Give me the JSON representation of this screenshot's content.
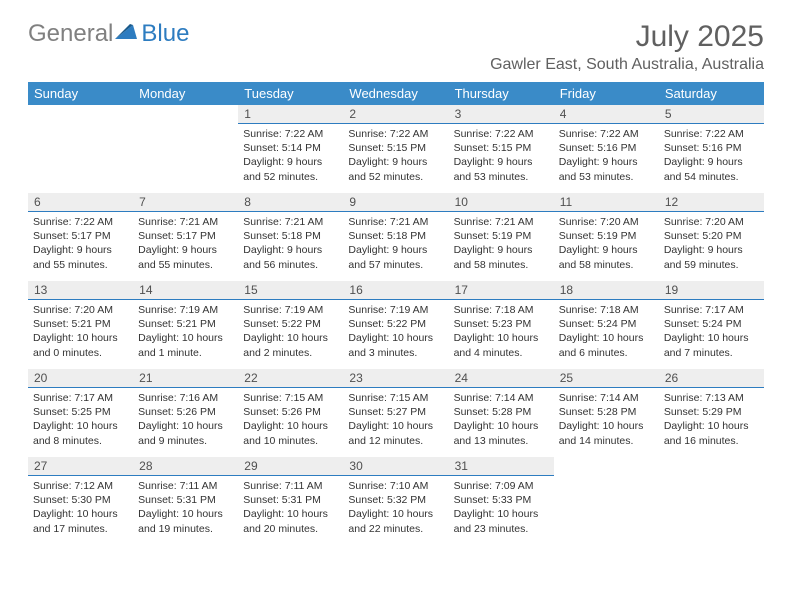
{
  "logo": {
    "part1": "General",
    "part2": "Blue"
  },
  "title": "July 2025",
  "subtitle": "Gawler East, South Australia, Australia",
  "colors": {
    "header_bg": "#3a8bc8",
    "header_text": "#ffffff",
    "daynum_bg": "#eeeeee",
    "daynum_border": "#2d7cc0",
    "logo_gray": "#808080",
    "logo_blue": "#2d7cc0",
    "title_color": "#606060",
    "text_color": "#333333",
    "bg": "#ffffff"
  },
  "dayNames": [
    "Sunday",
    "Monday",
    "Tuesday",
    "Wednesday",
    "Thursday",
    "Friday",
    "Saturday"
  ],
  "weeks": [
    [
      null,
      null,
      {
        "n": "1",
        "sr": "7:22 AM",
        "ss": "5:14 PM",
        "dl": "9 hours and 52 minutes."
      },
      {
        "n": "2",
        "sr": "7:22 AM",
        "ss": "5:15 PM",
        "dl": "9 hours and 52 minutes."
      },
      {
        "n": "3",
        "sr": "7:22 AM",
        "ss": "5:15 PM",
        "dl": "9 hours and 53 minutes."
      },
      {
        "n": "4",
        "sr": "7:22 AM",
        "ss": "5:16 PM",
        "dl": "9 hours and 53 minutes."
      },
      {
        "n": "5",
        "sr": "7:22 AM",
        "ss": "5:16 PM",
        "dl": "9 hours and 54 minutes."
      }
    ],
    [
      {
        "n": "6",
        "sr": "7:22 AM",
        "ss": "5:17 PM",
        "dl": "9 hours and 55 minutes."
      },
      {
        "n": "7",
        "sr": "7:21 AM",
        "ss": "5:17 PM",
        "dl": "9 hours and 55 minutes."
      },
      {
        "n": "8",
        "sr": "7:21 AM",
        "ss": "5:18 PM",
        "dl": "9 hours and 56 minutes."
      },
      {
        "n": "9",
        "sr": "7:21 AM",
        "ss": "5:18 PM",
        "dl": "9 hours and 57 minutes."
      },
      {
        "n": "10",
        "sr": "7:21 AM",
        "ss": "5:19 PM",
        "dl": "9 hours and 58 minutes."
      },
      {
        "n": "11",
        "sr": "7:20 AM",
        "ss": "5:19 PM",
        "dl": "9 hours and 58 minutes."
      },
      {
        "n": "12",
        "sr": "7:20 AM",
        "ss": "5:20 PM",
        "dl": "9 hours and 59 minutes."
      }
    ],
    [
      {
        "n": "13",
        "sr": "7:20 AM",
        "ss": "5:21 PM",
        "dl": "10 hours and 0 minutes."
      },
      {
        "n": "14",
        "sr": "7:19 AM",
        "ss": "5:21 PM",
        "dl": "10 hours and 1 minute."
      },
      {
        "n": "15",
        "sr": "7:19 AM",
        "ss": "5:22 PM",
        "dl": "10 hours and 2 minutes."
      },
      {
        "n": "16",
        "sr": "7:19 AM",
        "ss": "5:22 PM",
        "dl": "10 hours and 3 minutes."
      },
      {
        "n": "17",
        "sr": "7:18 AM",
        "ss": "5:23 PM",
        "dl": "10 hours and 4 minutes."
      },
      {
        "n": "18",
        "sr": "7:18 AM",
        "ss": "5:24 PM",
        "dl": "10 hours and 6 minutes."
      },
      {
        "n": "19",
        "sr": "7:17 AM",
        "ss": "5:24 PM",
        "dl": "10 hours and 7 minutes."
      }
    ],
    [
      {
        "n": "20",
        "sr": "7:17 AM",
        "ss": "5:25 PM",
        "dl": "10 hours and 8 minutes."
      },
      {
        "n": "21",
        "sr": "7:16 AM",
        "ss": "5:26 PM",
        "dl": "10 hours and 9 minutes."
      },
      {
        "n": "22",
        "sr": "7:15 AM",
        "ss": "5:26 PM",
        "dl": "10 hours and 10 minutes."
      },
      {
        "n": "23",
        "sr": "7:15 AM",
        "ss": "5:27 PM",
        "dl": "10 hours and 12 minutes."
      },
      {
        "n": "24",
        "sr": "7:14 AM",
        "ss": "5:28 PM",
        "dl": "10 hours and 13 minutes."
      },
      {
        "n": "25",
        "sr": "7:14 AM",
        "ss": "5:28 PM",
        "dl": "10 hours and 14 minutes."
      },
      {
        "n": "26",
        "sr": "7:13 AM",
        "ss": "5:29 PM",
        "dl": "10 hours and 16 minutes."
      }
    ],
    [
      {
        "n": "27",
        "sr": "7:12 AM",
        "ss": "5:30 PM",
        "dl": "10 hours and 17 minutes."
      },
      {
        "n": "28",
        "sr": "7:11 AM",
        "ss": "5:31 PM",
        "dl": "10 hours and 19 minutes."
      },
      {
        "n": "29",
        "sr": "7:11 AM",
        "ss": "5:31 PM",
        "dl": "10 hours and 20 minutes."
      },
      {
        "n": "30",
        "sr": "7:10 AM",
        "ss": "5:32 PM",
        "dl": "10 hours and 22 minutes."
      },
      {
        "n": "31",
        "sr": "7:09 AM",
        "ss": "5:33 PM",
        "dl": "10 hours and 23 minutes."
      },
      null,
      null
    ]
  ],
  "labels": {
    "sunrise": "Sunrise:",
    "sunset": "Sunset:",
    "daylight": "Daylight:"
  }
}
